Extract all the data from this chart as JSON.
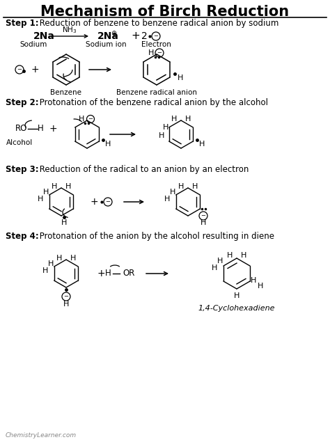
{
  "title": "Mechanism of Birch Reduction",
  "bg_color": "#ffffff",
  "text_color": "#000000",
  "watermark": "ChemistryLearner.com",
  "step1_bold": "Step 1:",
  "step1_normal": " Reduction of benzene to benzene radical anion by sodium",
  "step2_bold": "Step 2:",
  "step2_normal": " Protonation of the benzene radical anion by the alcohol",
  "step3_bold": "Step 3:",
  "step3_normal": " Reduction of the radical to an anion by an electron",
  "step4_bold": "Step 4:",
  "step4_normal": " Protonation of the anion by the alcohol resulting in diene",
  "label_benzene": "Benzene",
  "label_bra": "Benzene radical anion",
  "label_alcohol": "Alcohol",
  "label_cyclohex": "1,4-Cyclohexadiene",
  "label_sodium": "Sodium",
  "label_sodium_ion": "Sodium ion",
  "label_electron": "Electron"
}
